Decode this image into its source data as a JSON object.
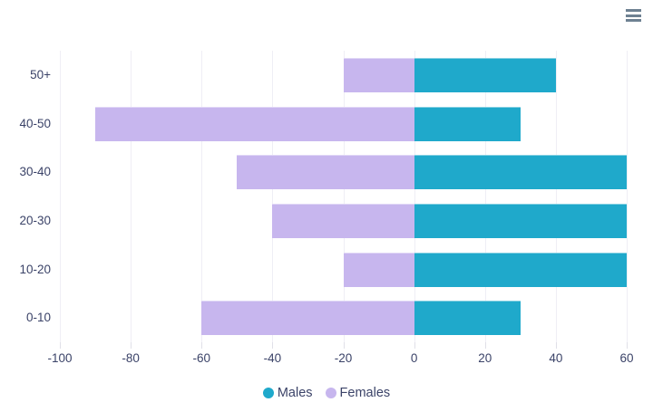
{
  "toolbar": {
    "menu_icon": "hamburger-menu"
  },
  "chart_data": {
    "type": "bar",
    "orientation": "horizontal-diverging",
    "categories": [
      "50+",
      "40-50",
      "30-40",
      "20-30",
      "10-20",
      "0-10"
    ],
    "series": [
      {
        "name": "Males",
        "color": "#1FA9CB",
        "values": [
          40,
          30,
          60,
          60,
          60,
          30
        ]
      },
      {
        "name": "Females",
        "color": "#C7B6EE",
        "values": [
          -20,
          -90,
          -50,
          -40,
          -20,
          -60
        ]
      }
    ],
    "xlim": [
      -100,
      60
    ],
    "xticks": [
      -100,
      -80,
      -60,
      -40,
      -20,
      0,
      20,
      40,
      60
    ],
    "title": "",
    "xlabel": "",
    "ylabel": "",
    "grid": true,
    "legend_position": "bottom"
  }
}
